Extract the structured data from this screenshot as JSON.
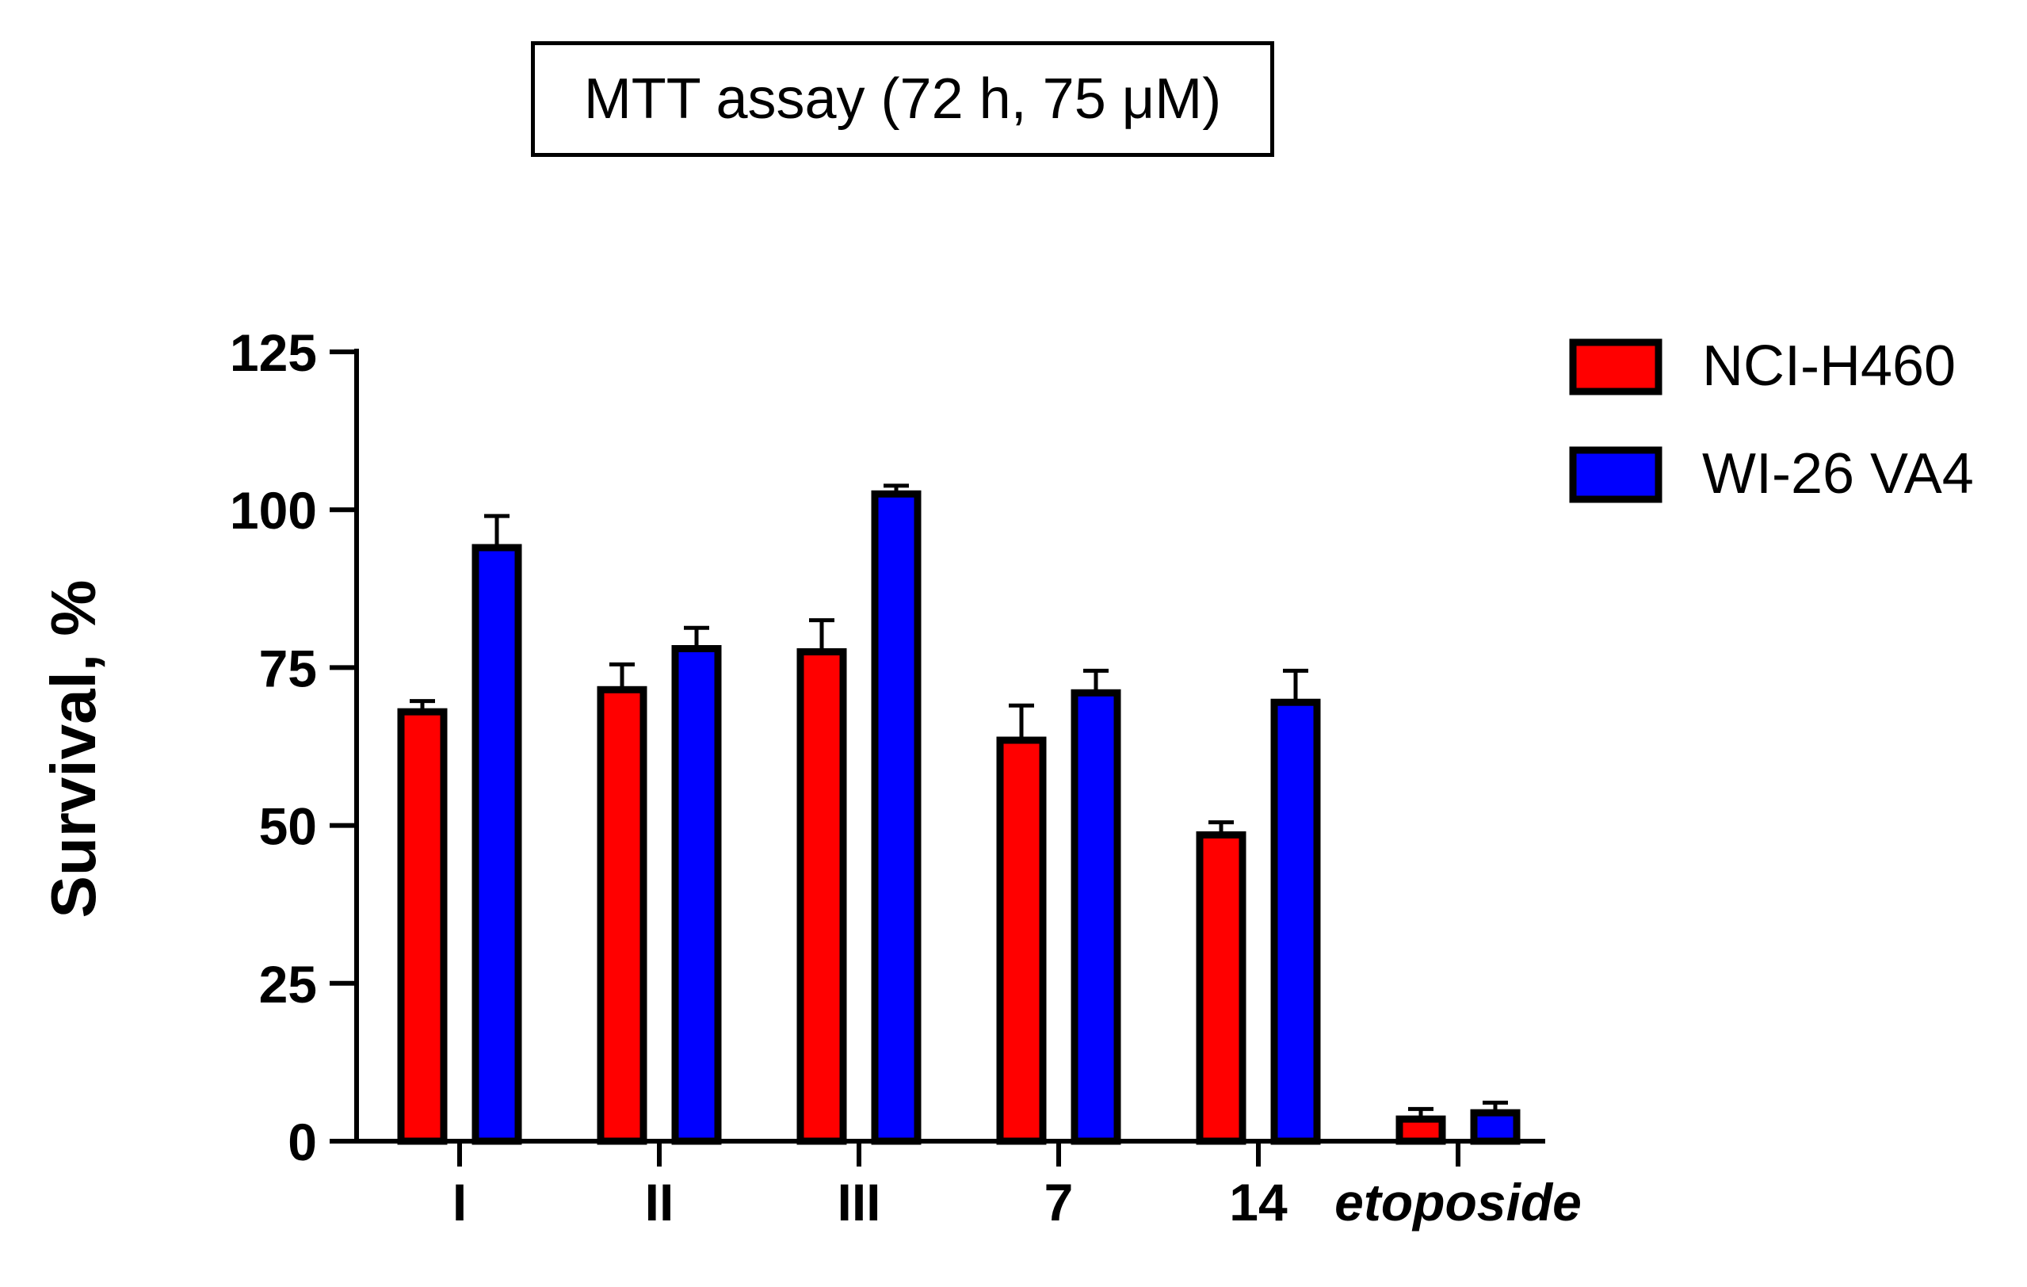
{
  "chart_data": {
    "type": "bar",
    "title": "MTT assay (72 h, 75 μM)",
    "xlabel": "",
    "ylabel": "Survival, %",
    "ylim": [
      0,
      125
    ],
    "yticks": [
      0,
      25,
      50,
      75,
      100,
      125
    ],
    "categories": [
      "I",
      "II",
      "III",
      "7",
      "14",
      "etoposide"
    ],
    "italic_categories": [
      "etoposide"
    ],
    "legend_position": "top-right",
    "series": [
      {
        "name": "NCI-H460",
        "color": "#ff0000",
        "values": [
          68,
          71.5,
          77.5,
          63.5,
          48.5,
          3.5
        ],
        "errors": [
          1.7,
          4,
          5,
          5.5,
          2,
          1.6
        ]
      },
      {
        "name": "WI-26 VA4",
        "color": "#0000ff",
        "values": [
          94,
          78,
          102.5,
          71,
          69.5,
          4.5
        ],
        "errors": [
          5,
          3.3,
          1.3,
          3.5,
          5,
          1.6
        ]
      }
    ]
  }
}
